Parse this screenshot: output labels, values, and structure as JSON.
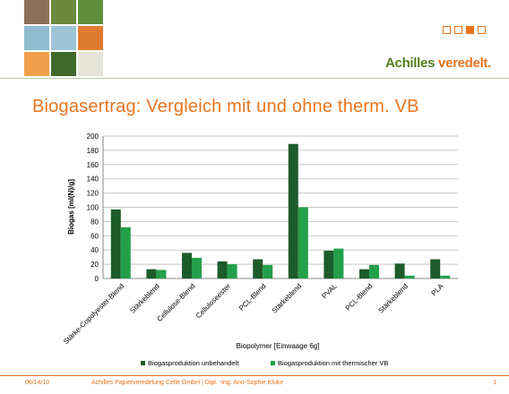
{
  "header": {
    "brand_name": "Achilles",
    "brand_suffix": "veredelt.",
    "tiles": [
      {
        "name": "wood-bark-photo-tile",
        "color": "#8a7058"
      },
      {
        "name": "eye-photo-tile",
        "color": "#6b8a3c"
      },
      {
        "name": "leaf-photo-tile",
        "color": "#5f8f3a"
      },
      {
        "name": "water-drops-photo-tile",
        "color": "#8fbcd0"
      },
      {
        "name": "blue-pattern-photo-tile",
        "color": "#9cc4d6"
      },
      {
        "name": "orange-texture-photo-tile",
        "color": "#e07a2e"
      },
      {
        "name": "orange-fabric-photo-tile",
        "color": "#f0a04a"
      },
      {
        "name": "green-foliage-photo-tile",
        "color": "#3f6b2a"
      },
      {
        "name": "light-fabric-photo-tile",
        "color": "#e6e6d8"
      }
    ],
    "brand_colors": {
      "accent": "#e8741e",
      "brand_green": "#4f7f1c"
    }
  },
  "slide": {
    "title": "Biogasertrag: Vergleich mit und ohne therm. VB"
  },
  "chart_data": {
    "type": "bar",
    "categories": [
      "Stärke-Copolyester-Blend",
      "Stärkeblend",
      "Cellulose-Blend",
      "Celluloseester",
      "PCL-Blend",
      "Stärkeblend",
      "PVAL",
      "PCL-Blend",
      "Stärkeblend",
      "PLA"
    ],
    "series": [
      {
        "name": "Biogasproduktion unbehandelt",
        "color": "#1d5c2a",
        "values": [
          97,
          13,
          36,
          24,
          27,
          189,
          39,
          13,
          21,
          27
        ]
      },
      {
        "name": "Biogasproduktion mit thermischer VB",
        "color": "#23a04a",
        "values": [
          72,
          12,
          29,
          20,
          19,
          100,
          42,
          19,
          4,
          4
        ]
      }
    ],
    "xlabel": "Biopolymer [Einwaage 6g]",
    "ylabel": "Biogas [ml(N)/g]",
    "ylim": [
      0,
      200
    ],
    "yticks": [
      "0",
      "20",
      "40",
      "60",
      "80",
      "100",
      "120",
      "140",
      "160",
      "180",
      "200"
    ],
    "grid": true,
    "legend": "bottom"
  },
  "footer": {
    "date": "06/14/10",
    "center": "Achilles Papierveredelung Celle GmbH | Dipl. -Ing. Ann-Sophie Kluke",
    "page": "1"
  }
}
